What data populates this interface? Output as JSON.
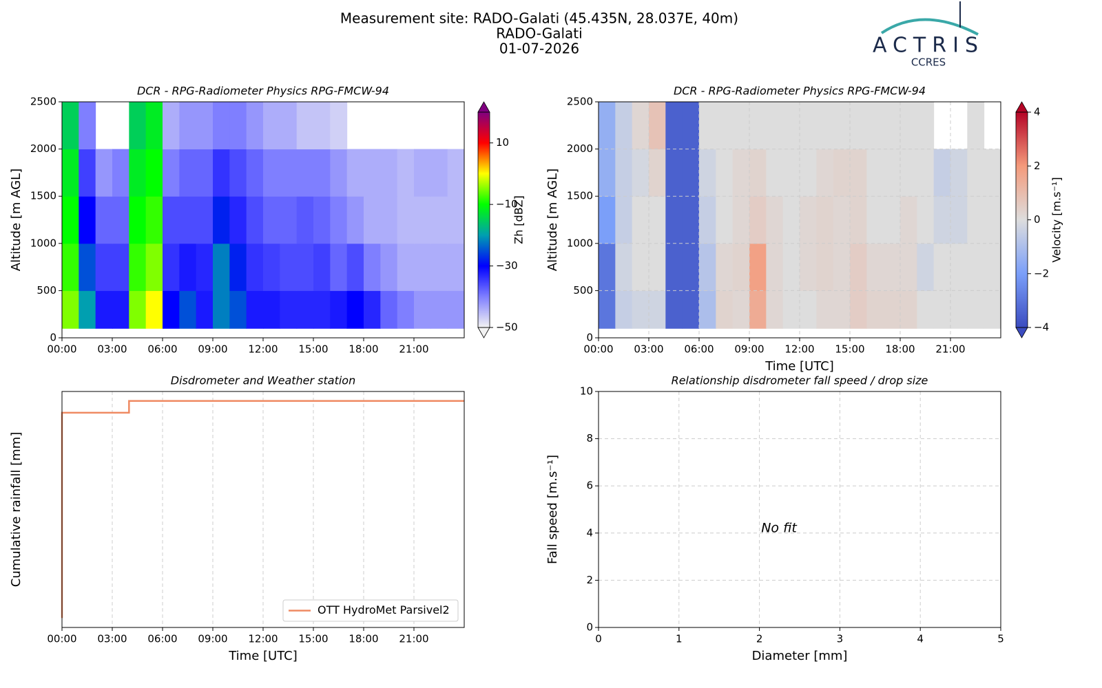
{
  "header": {
    "title_lines": [
      "Measurement site: RADO-Galati (45.435N, 28.037E, 40m)",
      "RADO-Galati",
      "01-07-2026"
    ],
    "logo_text": "ACTRIS",
    "logo_subtext": "CCRES"
  },
  "chart_data": [
    {
      "type": "heatmap",
      "title": "DCR - RPG-Radiometer Physics RPG-FMCW-94",
      "ylabel": "Altitude [m AGL]",
      "cbar_label": "Zh [dBZ]",
      "x_edges": [
        0,
        1,
        2,
        3,
        4,
        5,
        6,
        7,
        8,
        9,
        10,
        11,
        12,
        13,
        14,
        15,
        16,
        17,
        18,
        19,
        20,
        21,
        22,
        23,
        24
      ],
      "y_edges": [
        100,
        500,
        1000,
        1500,
        2000,
        2500
      ],
      "z": [
        [
          -5,
          -20,
          -32,
          -32,
          -5,
          0,
          -30,
          -25,
          -32,
          -22,
          -25,
          -32,
          -32,
          -33,
          -33,
          -33,
          -32,
          -30,
          -33,
          -38,
          -40,
          -42,
          -42,
          -42
        ],
        [
          -8,
          -25,
          -35,
          -35,
          -8,
          -5,
          -34,
          -32,
          -33,
          -22,
          -28,
          -34,
          -35,
          -36,
          -36,
          -35,
          -38,
          -36,
          -40,
          -42,
          -44,
          -44,
          -44,
          -44
        ],
        [
          -10,
          -30,
          -38,
          -38,
          -10,
          -8,
          -36,
          -36,
          -36,
          -28,
          -33,
          -36,
          -38,
          -38,
          -37,
          -38,
          -40,
          -42,
          -44,
          -44,
          -45,
          -45,
          -45,
          -45
        ],
        [
          -12,
          -35,
          -42,
          -40,
          -12,
          -10,
          -40,
          -38,
          -38,
          -34,
          -36,
          -38,
          -40,
          -40,
          -40,
          -40,
          -42,
          -44,
          -44,
          -44,
          -45,
          -44,
          -44,
          -45
        ],
        [
          -15,
          -40,
          null,
          null,
          -15,
          -12,
          -44,
          -42,
          -42,
          -40,
          -40,
          -42,
          -44,
          -44,
          -46,
          -46,
          -47,
          null,
          null,
          null,
          null,
          null,
          null,
          null
        ]
      ],
      "xlim": [
        0,
        24
      ],
      "xticks": [
        {
          "value": 0,
          "label": "00:00"
        },
        {
          "value": 3,
          "label": "03:00"
        },
        {
          "value": 6,
          "label": "06:00"
        },
        {
          "value": 9,
          "label": "09:00"
        },
        {
          "value": 12,
          "label": "12:00"
        },
        {
          "value": 15,
          "label": "15:00"
        },
        {
          "value": 18,
          "label": "18:00"
        },
        {
          "value": 21,
          "label": "21:00"
        }
      ],
      "ylim": [
        0,
        2500
      ],
      "yticks": [
        0,
        500,
        1000,
        1500,
        2000,
        2500
      ],
      "clim": [
        -50,
        20
      ],
      "cbar_ticks": [
        {
          "value": -50,
          "label": "−50"
        },
        {
          "value": -30,
          "label": "−30"
        },
        {
          "value": -10,
          "label": "−10"
        },
        10
      ],
      "colormap": [
        "#f2f2f2",
        "#7f7fff",
        "#0000ff",
        "#009fb0",
        "#00ff00",
        "#ffff00",
        "#ff0000",
        "#800080"
      ],
      "cbar_extend": "both",
      "grid": false
    },
    {
      "type": "heatmap",
      "title": "DCR - RPG-Radiometer Physics RPG-FMCW-94",
      "ylabel": "Altitude [m AGL]",
      "xlabel": "Time [UTC]",
      "cbar_label": "Velocity [m.s⁻¹]",
      "x_edges": [
        0,
        1,
        2,
        3,
        4,
        5,
        6,
        7,
        8,
        9,
        10,
        11,
        12,
        13,
        14,
        15,
        16,
        17,
        18,
        19,
        20,
        21,
        22,
        23,
        24
      ],
      "y_edges": [
        100,
        500,
        1000,
        1500,
        2000,
        2500
      ],
      "z": [
        [
          -3,
          -0.5,
          -0.3,
          -0.3,
          -3.5,
          -3.5,
          -1,
          0.3,
          0.2,
          1.5,
          0.2,
          0,
          0,
          0.2,
          0.2,
          0.5,
          0.3,
          0.3,
          0.3,
          0,
          0,
          0,
          0,
          0
        ],
        [
          -3,
          -0.3,
          0,
          0,
          -3.5,
          -3.5,
          -0.8,
          0.2,
          0.3,
          1.8,
          0.2,
          0,
          0.2,
          0.3,
          0.2,
          0.5,
          0.2,
          0.2,
          0.2,
          -0.3,
          0,
          0,
          0,
          0
        ],
        [
          -2,
          -0.5,
          0,
          0,
          -3.5,
          -3.5,
          -0.5,
          0,
          0.2,
          0.5,
          0.2,
          0,
          0.2,
          0.3,
          0.2,
          0.3,
          0,
          0,
          0.2,
          0,
          -0.3,
          -0.3,
          0,
          0
        ],
        [
          -1.5,
          -0.5,
          -0.2,
          0.3,
          -3.5,
          -3.5,
          -0.3,
          0,
          0.2,
          0.3,
          0,
          0,
          0,
          0.2,
          0.3,
          0.3,
          0,
          0,
          0,
          0,
          -0.5,
          -0.3,
          0,
          0
        ],
        [
          -1.5,
          -0.5,
          0.2,
          0.8,
          -3.5,
          -3.5,
          0,
          0,
          0,
          0,
          0,
          0,
          0,
          0,
          0,
          0,
          0,
          0,
          0,
          0,
          null,
          null,
          0,
          null
        ]
      ],
      "xlim": [
        0,
        24
      ],
      "xticks": [
        {
          "value": 0,
          "label": "00:00"
        },
        {
          "value": 3,
          "label": "03:00"
        },
        {
          "value": 6,
          "label": "06:00"
        },
        {
          "value": 9,
          "label": "09:00"
        },
        {
          "value": 12,
          "label": "12:00"
        },
        {
          "value": 15,
          "label": "15:00"
        },
        {
          "value": 18,
          "label": "18:00"
        },
        {
          "value": 21,
          "label": "21:00"
        }
      ],
      "ylim": [
        0,
        2500
      ],
      "yticks": [
        0,
        500,
        1000,
        1500,
        2000,
        2500
      ],
      "clim": [
        -4,
        4
      ],
      "cbar_ticks": [
        {
          "value": -4,
          "label": "−4"
        },
        {
          "value": -2,
          "label": "−2"
        },
        0,
        2,
        4
      ],
      "colormap": [
        "#3b4cc0",
        "#7b9ff9",
        "#dddddd",
        "#f49a7b",
        "#b40426"
      ],
      "cbar_extend": "both",
      "grid": true
    },
    {
      "type": "line",
      "title": "Disdrometer and Weather station",
      "ylabel": "Cumulative rainfall [mm]",
      "xlabel": "Time [UTC]",
      "x": [
        0,
        0,
        4,
        4,
        24
      ],
      "series": [
        {
          "name": "OTT HydroMet Parsivel2",
          "color": "#ef8a62",
          "values": [
            0.04,
            0.91,
            0.91,
            0.96,
            0.96
          ]
        }
      ],
      "xlim": [
        0,
        24
      ],
      "xticks": [
        {
          "value": 0,
          "label": "00:00"
        },
        {
          "value": 3,
          "label": "03:00"
        },
        {
          "value": 6,
          "label": "06:00"
        },
        {
          "value": 9,
          "label": "09:00"
        },
        {
          "value": 12,
          "label": "12:00"
        },
        {
          "value": 15,
          "label": "15:00"
        },
        {
          "value": 18,
          "label": "18:00"
        },
        {
          "value": 21,
          "label": "21:00"
        }
      ],
      "ylim": [
        0,
        1
      ],
      "grid": true,
      "legend": "lower right"
    },
    {
      "type": "scatter",
      "title": "Relationship disdrometer fall speed / drop size",
      "ylabel": "Fall speed [m.s⁻¹]",
      "xlabel": "Diameter [mm]",
      "annotation": "No fit",
      "xlim": [
        0,
        5
      ],
      "xticks": [
        0,
        1,
        2,
        3,
        4,
        5
      ],
      "ylim": [
        0,
        10
      ],
      "yticks": [
        0,
        2,
        4,
        6,
        8,
        10
      ],
      "grid": true
    }
  ]
}
